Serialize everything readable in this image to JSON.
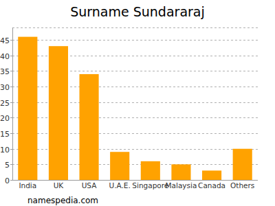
{
  "chart_data": {
    "type": "bar",
    "title": "Surname Sundararaj",
    "categories": [
      "India",
      "UK",
      "USA",
      "U.A.E.",
      "Singapore",
      "Malaysia",
      "Canada",
      "Others"
    ],
    "values": [
      46,
      43,
      34,
      9,
      6,
      5,
      3,
      10
    ],
    "color": "#ffa200",
    "ylim": [
      0,
      49
    ],
    "yticks": [
      0,
      5,
      10,
      15,
      20,
      25,
      30,
      35,
      40,
      45
    ],
    "grid": true,
    "annotations": [
      "namespedia.com"
    ]
  }
}
